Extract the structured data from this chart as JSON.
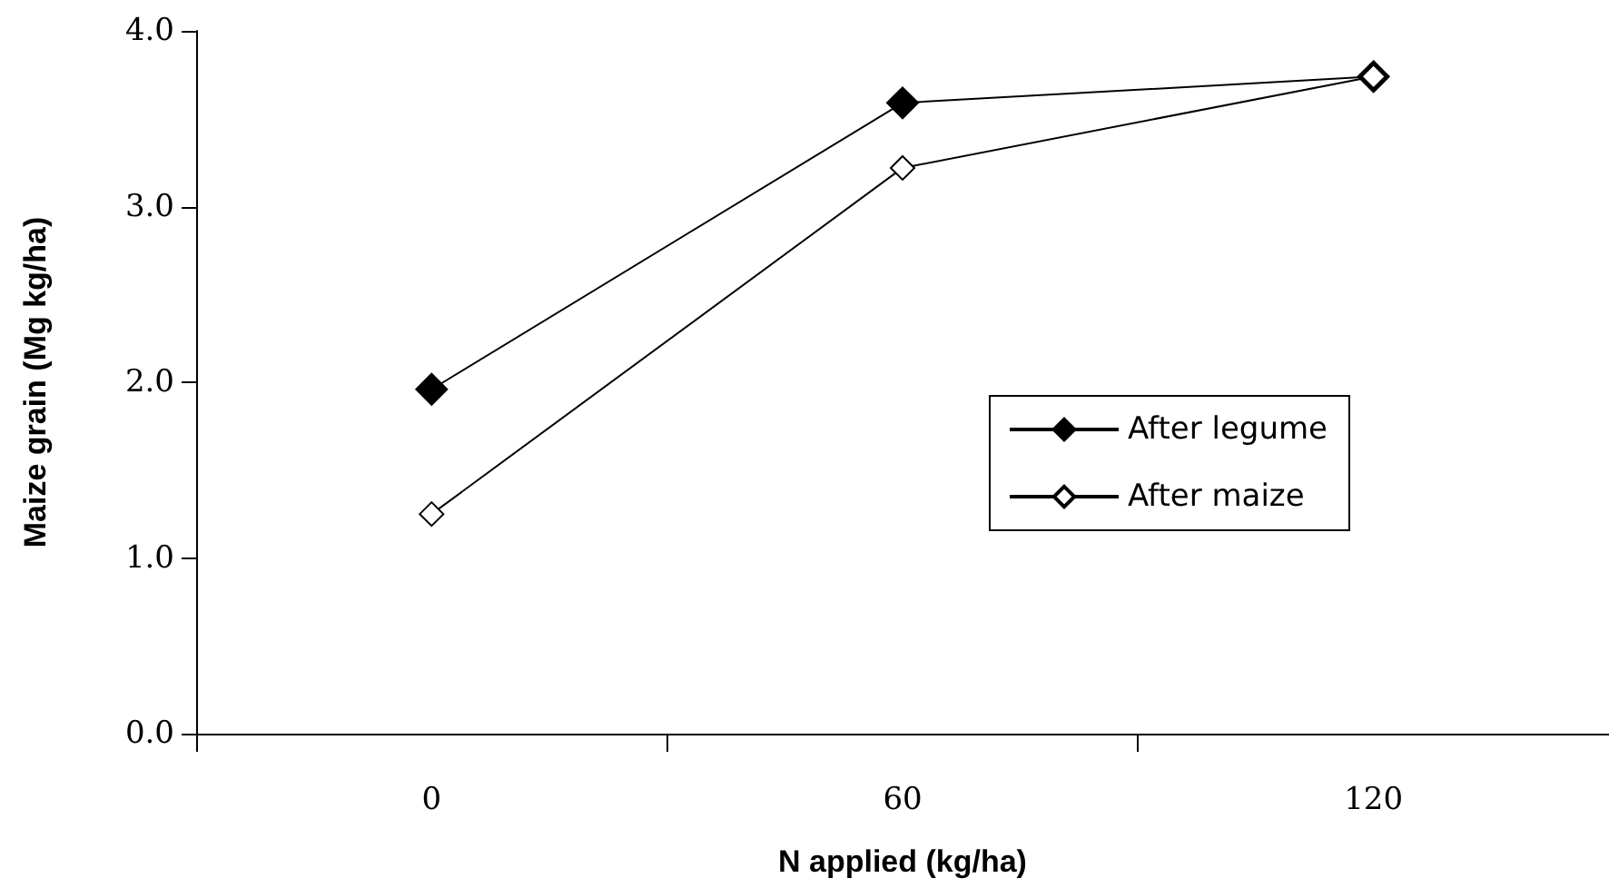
{
  "chart_data": {
    "type": "line",
    "xlabel": "N applied (kg/ha)",
    "ylabel": "Maize grain (Mg kg/ha)",
    "categories": [
      "0",
      "60",
      "120"
    ],
    "series": [
      {
        "name": "After legume",
        "color": "#000000",
        "values": [
          1.96,
          3.59,
          3.74
        ]
      },
      {
        "name": "After maize",
        "color": "#ffffff",
        "values": [
          1.25,
          3.22,
          3.74
        ]
      }
    ],
    "ylim": [
      0,
      4
    ],
    "yticks": [
      {
        "value": 0,
        "label": "0.0"
      },
      {
        "value": 1,
        "label": "1.0"
      },
      {
        "value": 2,
        "label": "2.0"
      },
      {
        "value": 3,
        "label": "3.0"
      },
      {
        "value": 4,
        "label": "4.0"
      }
    ],
    "grid": false,
    "legend": "right",
    "marker": "diamond",
    "line_style": "solid"
  }
}
